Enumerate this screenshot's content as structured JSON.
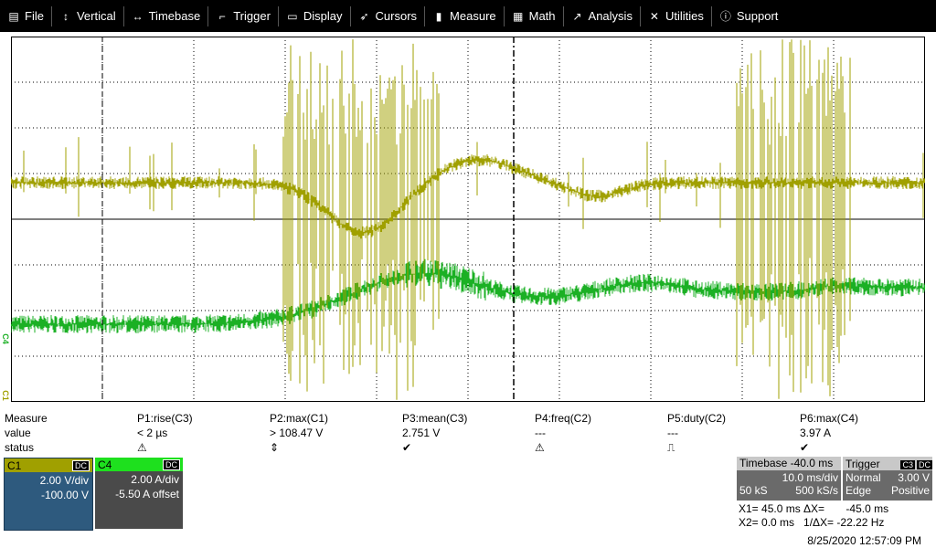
{
  "menu": [
    {
      "label": "File",
      "icon": "file-icon",
      "glyph": "▤"
    },
    {
      "label": "Vertical",
      "icon": "vertical-arrows-icon",
      "glyph": "↕"
    },
    {
      "label": "Timebase",
      "icon": "horizontal-arrows-icon",
      "glyph": "↔"
    },
    {
      "label": "Trigger",
      "icon": "trigger-icon",
      "glyph": "⌐"
    },
    {
      "label": "Display",
      "icon": "display-icon",
      "glyph": "▭"
    },
    {
      "label": "Cursors",
      "icon": "cursor-icon",
      "glyph": "➶"
    },
    {
      "label": "Measure",
      "icon": "measure-icon",
      "glyph": "▮"
    },
    {
      "label": "Math",
      "icon": "math-icon",
      "glyph": "▦"
    },
    {
      "label": "Analysis",
      "icon": "analysis-icon",
      "glyph": "↗"
    },
    {
      "label": "Utilities",
      "icon": "utilities-icon",
      "glyph": "✕"
    },
    {
      "label": "Support",
      "icon": "support-icon",
      "glyph": "ⓘ"
    }
  ],
  "colors": {
    "c1": "#a0a000",
    "c4": "#1bb024",
    "menu_bg": "#000000"
  },
  "markers": {
    "c4": "C4",
    "c1": "C1"
  },
  "measure": {
    "labels": [
      "Measure",
      "value",
      "status"
    ],
    "params": [
      {
        "name": "P1:rise(C3)",
        "value": "< 2 µs",
        "status": "⚠"
      },
      {
        "name": "P2:max(C1)",
        "value": "> 108.47 V",
        "status": "⇕"
      },
      {
        "name": "P3:mean(C3)",
        "value": "2.751 V",
        "status": "✔"
      },
      {
        "name": "P4:freq(C2)",
        "value": "---",
        "status": "⚠"
      },
      {
        "name": "P5:duty(C2)",
        "value": "---",
        "status": "⎍"
      },
      {
        "name": "P6:max(C4)",
        "value": "3.97 A",
        "status": "✔"
      }
    ]
  },
  "c1": {
    "name": "C1",
    "coupling": "DC",
    "scale": "2.00 V/div",
    "offset": "-100.00 V"
  },
  "c4": {
    "name": "C4",
    "coupling": "DC",
    "scale": "2.00 A/div",
    "offset": "-5.50 A offset"
  },
  "timebase": {
    "title": "Timebase -40.0 ms",
    "scale": "10.0 ms/div",
    "samples": "50 kS",
    "rate": "500 kS/s"
  },
  "trigger": {
    "title": "Trigger",
    "src": "C3",
    "coupling": "DC",
    "mode": "Normal",
    "level": "3.00 V",
    "type": "Edge",
    "slope": "Positive"
  },
  "cursors": {
    "line1": "X1= 45.0 ms ΔX=       -45.0 ms",
    "line2": "X2= 0.0 ms   1/ΔX= -22.22 Hz"
  },
  "datetime": "8/25/2020 12:57:09 PM"
}
